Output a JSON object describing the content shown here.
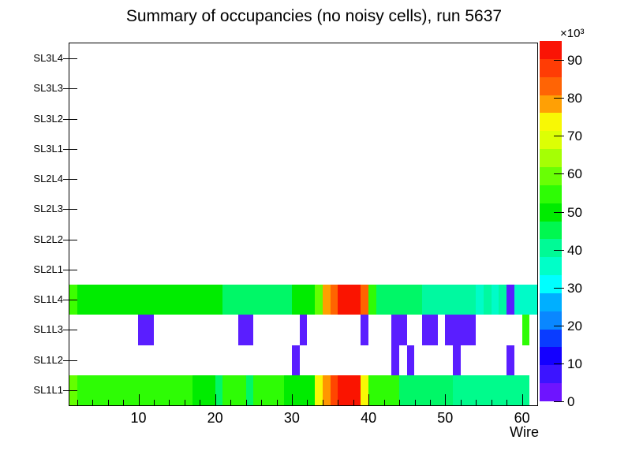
{
  "window": {
    "title": "Summary of occupancies (no noisy cells), run 5637"
  },
  "colors": {
    "background": "#FFFFFF",
    "axis": "#000000",
    "text": "#000000",
    "empty_bin": "#FFFFFF"
  },
  "chart_data": {
    "type": "heatmap",
    "title": "Summary of occupancies (no noisy cells), run 5637",
    "xlabel": "Wire",
    "x_range": [
      1,
      62
    ],
    "x_major_ticks": [
      10,
      20,
      30,
      40,
      50,
      60
    ],
    "x_minor_tick_step": 2,
    "row_labels_top_to_bottom": [
      "SL3L4",
      "SL3L3",
      "SL3L2",
      "SL3L1",
      "SL2L4",
      "SL2L3",
      "SL2L2",
      "SL2L1",
      "SL1L4",
      "SL1L3",
      "SL1L2",
      "SL1L1"
    ],
    "empty_rows": [
      "SL3L4",
      "SL3L3",
      "SL3L2",
      "SL3L1",
      "SL2L4",
      "SL2L3",
      "SL2L2",
      "SL2L1"
    ],
    "z_axis": {
      "multiplier_label": "×10³",
      "ticks": [
        0,
        10,
        20,
        30,
        40,
        50,
        60,
        70,
        80,
        90
      ],
      "min": 0,
      "max": 95,
      "units": "counts ×10³"
    },
    "palette_bottom_to_top": [
      "#6E14FF",
      "#3C14FF",
      "#1400FF",
      "#0A3CFF",
      "#0A87FF",
      "#00AFFF",
      "#00FFFF",
      "#00FFC8",
      "#00FA96",
      "#00F750",
      "#00EB00",
      "#2EFC05",
      "#69FF05",
      "#A5FF05",
      "#DCFF05",
      "#F8F805",
      "#FFA005",
      "#FF6405",
      "#FF3C05",
      "#FA1405"
    ],
    "cells_by_row": {
      "SL1L4": [
        {
          "from": 1,
          "to": 1,
          "color": "#3CFF00",
          "value_k": 55
        },
        {
          "from": 2,
          "to": 20,
          "color": "#00EC00",
          "value_k": 48
        },
        {
          "from": 21,
          "to": 29,
          "color": "#00F767",
          "value_k": 41
        },
        {
          "from": 30,
          "to": 32,
          "color": "#00EC00",
          "value_k": 48
        },
        {
          "from": 33,
          "to": 33,
          "color": "#64FF00",
          "value_k": 58
        },
        {
          "from": 34,
          "to": 34,
          "color": "#FFA000",
          "value_k": 78
        },
        {
          "from": 35,
          "to": 35,
          "color": "#FF6400",
          "value_k": 82
        },
        {
          "from": 36,
          "to": 38,
          "color": "#FA1400",
          "value_k": 91
        },
        {
          "from": 39,
          "to": 39,
          "color": "#FF6400",
          "value_k": 82
        },
        {
          "from": 40,
          "to": 40,
          "color": "#2EFC05",
          "value_k": 53
        },
        {
          "from": 41,
          "to": 46,
          "color": "#00F767",
          "value_k": 41
        },
        {
          "from": 47,
          "to": 53,
          "color": "#00F9A0",
          "value_k": 36
        },
        {
          "from": 54,
          "to": 54,
          "color": "#00FCC8",
          "value_k": 33
        },
        {
          "from": 55,
          "to": 55,
          "color": "#00F9A0",
          "value_k": 36
        },
        {
          "from": 56,
          "to": 56,
          "color": "#00FCC8",
          "value_k": 33
        },
        {
          "from": 57,
          "to": 57,
          "color": "#00F9A0",
          "value_k": 36
        },
        {
          "from": 58,
          "to": 58,
          "color": "#5A1EFF",
          "value_k": 3
        },
        {
          "from": 59,
          "to": 61,
          "color": "#00FBC8",
          "value_k": 33
        }
      ],
      "SL1L3": [
        {
          "from": 10,
          "to": 11,
          "color": "#5A1EFF",
          "value_k": 3
        },
        {
          "from": 23,
          "to": 24,
          "color": "#5A1EFF",
          "value_k": 3
        },
        {
          "from": 31,
          "to": 31,
          "color": "#5A1EFF",
          "value_k": 3
        },
        {
          "from": 39,
          "to": 39,
          "color": "#5A1EFF",
          "value_k": 3
        },
        {
          "from": 43,
          "to": 44,
          "color": "#5A1EFF",
          "value_k": 3
        },
        {
          "from": 47,
          "to": 48,
          "color": "#5A1EFF",
          "value_k": 3
        },
        {
          "from": 50,
          "to": 53,
          "color": "#5A1EFF",
          "value_k": 3
        },
        {
          "from": 60,
          "to": 60,
          "color": "#2EFC05",
          "value_k": 53
        }
      ],
      "SL1L2": [
        {
          "from": 30,
          "to": 30,
          "color": "#5A1EFF",
          "value_k": 3
        },
        {
          "from": 43,
          "to": 43,
          "color": "#5A1EFF",
          "value_k": 3
        },
        {
          "from": 45,
          "to": 45,
          "color": "#5A1EFF",
          "value_k": 3
        },
        {
          "from": 51,
          "to": 51,
          "color": "#5A1EFF",
          "value_k": 3
        },
        {
          "from": 58,
          "to": 58,
          "color": "#5A1EFF",
          "value_k": 3
        }
      ],
      "SL1L1": [
        {
          "from": 1,
          "to": 1,
          "color": "#64FF00",
          "value_k": 58
        },
        {
          "from": 2,
          "to": 16,
          "color": "#2EFC05",
          "value_k": 53
        },
        {
          "from": 17,
          "to": 19,
          "color": "#00EC00",
          "value_k": 48
        },
        {
          "from": 20,
          "to": 20,
          "color": "#00F767",
          "value_k": 41
        },
        {
          "from": 21,
          "to": 23,
          "color": "#2EFC05",
          "value_k": 53
        },
        {
          "from": 24,
          "to": 24,
          "color": "#00F767",
          "value_k": 41
        },
        {
          "from": 25,
          "to": 28,
          "color": "#2EFC05",
          "value_k": 53
        },
        {
          "from": 29,
          "to": 32,
          "color": "#00EC00",
          "value_k": 48
        },
        {
          "from": 33,
          "to": 33,
          "color": "#F8F805",
          "value_k": 70
        },
        {
          "from": 34,
          "to": 34,
          "color": "#FF9600",
          "value_k": 78
        },
        {
          "from": 35,
          "to": 35,
          "color": "#FF4600",
          "value_k": 86
        },
        {
          "from": 36,
          "to": 38,
          "color": "#FA1400",
          "value_k": 92
        },
        {
          "from": 39,
          "to": 39,
          "color": "#F8F805",
          "value_k": 70
        },
        {
          "from": 40,
          "to": 43,
          "color": "#2EFC05",
          "value_k": 53
        },
        {
          "from": 44,
          "to": 50,
          "color": "#00F767",
          "value_k": 41
        },
        {
          "from": 51,
          "to": 60,
          "color": "#00FB8C",
          "value_k": 38
        }
      ]
    }
  }
}
